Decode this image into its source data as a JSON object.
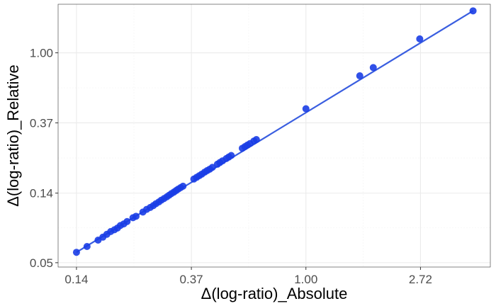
{
  "chart_data": {
    "type": "scatter",
    "x_scale": "log",
    "y_scale": "log",
    "xlabel": "Δ(log-ratio)_Absolute",
    "ylabel": "Δ(log-ratio)_Relative",
    "x_ticks": [
      {
        "value": 0.135,
        "label": "0.14"
      },
      {
        "value": 0.368,
        "label": "0.37"
      },
      {
        "value": 1.0,
        "label": "1.00"
      },
      {
        "value": 2.718,
        "label": "2.72"
      }
    ],
    "y_ticks": [
      {
        "value": 0.05,
        "label": "0.05"
      },
      {
        "value": 0.135,
        "label": "0.14"
      },
      {
        "value": 0.368,
        "label": "0.37"
      },
      {
        "value": 1.0,
        "label": "1.00"
      }
    ],
    "xlim": [
      0.115,
      5.0
    ],
    "ylim": [
      0.047,
      2.0
    ],
    "grid": true,
    "point_color": "#1a3de6",
    "line_color": "#3a5ee0",
    "trend_line": {
      "x": [
        0.135,
        4.3
      ],
      "y": [
        0.058,
        1.82
      ]
    },
    "points": {
      "x": [
        0.135,
        0.148,
        0.163,
        0.17,
        0.176,
        0.182,
        0.188,
        0.193,
        0.198,
        0.204,
        0.21,
        0.221,
        0.227,
        0.241,
        0.249,
        0.257,
        0.264,
        0.27,
        0.277,
        0.283,
        0.29,
        0.297,
        0.303,
        0.309,
        0.316,
        0.322,
        0.328,
        0.335,
        0.342,
        0.376,
        0.385,
        0.394,
        0.403,
        0.413,
        0.422,
        0.432,
        0.442,
        0.462,
        0.472,
        0.483,
        0.499,
        0.51,
        0.521,
        0.574,
        0.587,
        0.6,
        0.614,
        0.635,
        0.649,
        1.0,
        1.6,
        1.8,
        2.7,
        4.3
      ],
      "y": [
        0.058,
        0.063,
        0.069,
        0.072,
        0.075,
        0.078,
        0.08,
        0.082,
        0.085,
        0.087,
        0.09,
        0.095,
        0.097,
        0.103,
        0.107,
        0.11,
        0.113,
        0.116,
        0.119,
        0.122,
        0.125,
        0.128,
        0.131,
        0.134,
        0.137,
        0.14,
        0.143,
        0.146,
        0.149,
        0.165,
        0.169,
        0.173,
        0.177,
        0.182,
        0.186,
        0.19,
        0.195,
        0.204,
        0.209,
        0.214,
        0.221,
        0.226,
        0.231,
        0.256,
        0.262,
        0.268,
        0.274,
        0.284,
        0.29,
        0.45,
        0.72,
        0.81,
        1.22,
        1.82
      ]
    }
  }
}
